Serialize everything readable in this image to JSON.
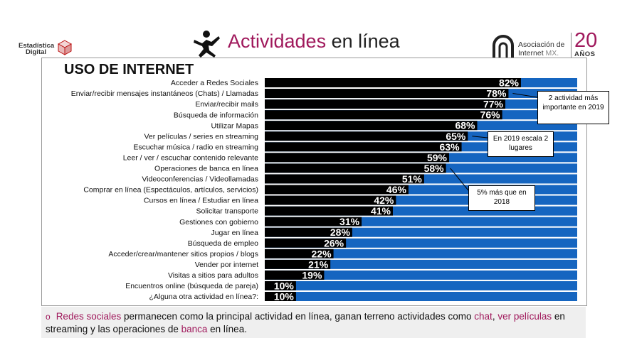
{
  "header": {
    "left_logo_line1": "Estadística",
    "left_logo_line2": "Digital",
    "title_part1": "Actividades",
    "title_part2": "en línea",
    "org_line1": "Asociación de",
    "org_line2": "Internet",
    "org_mx": "MX.",
    "anniversary_number": "20",
    "anniversary_word": "AÑOS"
  },
  "colors": {
    "accent": "#a0195c",
    "bar_value": "#000000",
    "bar_remainder": "#1565c0"
  },
  "chart_data": {
    "type": "bar",
    "orientation": "horizontal",
    "stacked_to": 100,
    "title": "USO DE INTERNET",
    "categories": [
      "Acceder a Redes Sociales",
      "Enviar/recibir mensajes instantáneos (Chats) / Llamadas",
      "Enviar/recibir mails",
      "Búsqueda de información",
      "Utilizar Mapas",
      "Ver películas / series en streaming",
      "Escuchar música / radio en streaming",
      "Leer / ver / escuchar contenido relevante",
      "Operaciones de banca en línea",
      "Videoconferencias / Videollamadas",
      "Comprar en línea (Espectáculos, artículos, servicios)",
      "Cursos en línea / Estudiar en línea",
      "Solicitar transporte",
      "Gestiones con gobierno",
      "Jugar en línea",
      "Búsqueda de empleo",
      "Acceder/crear/mantener sitios propios / blogs",
      "Vender por internet",
      "Visitas a sitios para adultos",
      "Encuentros online (búsqueda de pareja)",
      "¿Alguna otra actividad en línea?:"
    ],
    "values": [
      82,
      78,
      77,
      76,
      68,
      65,
      63,
      59,
      58,
      51,
      46,
      42,
      41,
      31,
      28,
      26,
      22,
      21,
      19,
      10,
      10
    ],
    "value_labels": [
      "82%",
      "78%",
      "77%",
      "76%",
      "68%",
      "65%",
      "63%",
      "59%",
      "58%",
      "51%",
      "46%",
      "42%",
      "41%",
      "31%",
      "28%",
      "26%",
      "22%",
      "21%",
      "19%",
      "10%",
      "10%"
    ],
    "xlim": [
      0,
      100
    ],
    "annotations": [
      {
        "text": "2 actividad más importante en 2019",
        "target": "Enviar/recibir mensajes instantáneos (Chats) / Llamadas"
      },
      {
        "text": "En 2019 escala 2 lugares",
        "target": "Ver películas / series en streaming"
      },
      {
        "text": "5% más que en 2018",
        "target": "Operaciones de banca en línea"
      }
    ]
  },
  "footnote": {
    "bullet": "o",
    "seg1": "Redes sociales",
    "seg2": " permanecen como la principal actividad en línea, ganan terreno actividades como ",
    "seg3": "chat",
    "seg4": ", ",
    "seg5": "ver películas",
    "seg6": " en streaming y las operaciones de ",
    "seg7": "banca",
    "seg8": " en línea."
  }
}
